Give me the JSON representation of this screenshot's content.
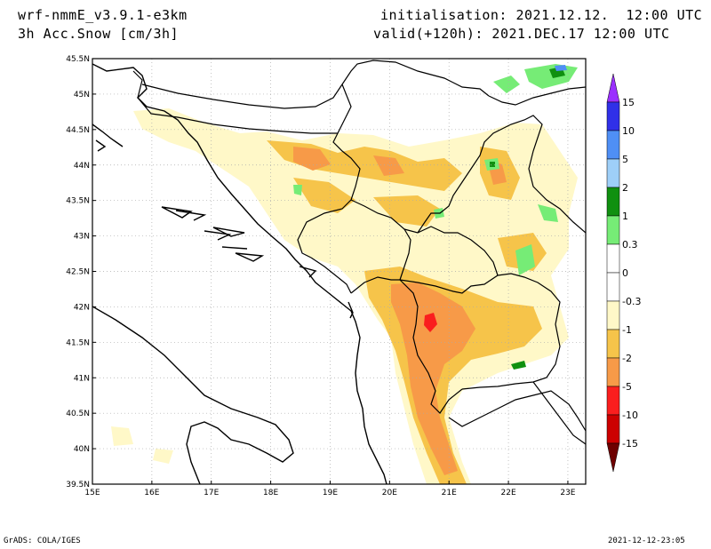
{
  "header": {
    "model": "wrf-nmmE_v3.9.1-e3km",
    "field": "3h Acc.Snow [cm/3h]",
    "init": "initialisation: 2021.12.12.  12:00 UTC",
    "valid": "valid(+120h): 2021.DEC.17 12:00 UTC"
  },
  "map": {
    "lat_ticks": [
      "45.5N",
      "45N",
      "44.5N",
      "44N",
      "43.5N",
      "43N",
      "42.5N",
      "42N",
      "41.5N",
      "41N",
      "40.5N",
      "40N",
      "39.5N"
    ],
    "lon_ticks": [
      "15E",
      "16E",
      "17E",
      "18E",
      "19E",
      "20E",
      "21E",
      "22E",
      "23E"
    ],
    "lat_range": [
      39.5,
      45.5
    ],
    "lon_range": [
      15,
      23.3
    ]
  },
  "colorbar": {
    "labels": [
      "15",
      "10",
      "5",
      "2",
      "1",
      "0.3",
      "0",
      "-0.3",
      "-1",
      "-2",
      "-5",
      "-10",
      "-15"
    ],
    "colors": [
      "#3030e8",
      "#4f8ff5",
      "#9ecff8",
      "#109010",
      "#76ec76",
      "#ffffff",
      "#ffffff",
      "#fff8c8",
      "#f6c44a",
      "#f79a48",
      "#fa1e1e",
      "#cc0000",
      "#8a0000"
    ],
    "top_arrow_color": "#9b30ff",
    "bottom_arrow_color": "#6e0000"
  },
  "footer": {
    "left": "GrADS: COLA/IGES",
    "right": "2021-12-12-23:05"
  }
}
